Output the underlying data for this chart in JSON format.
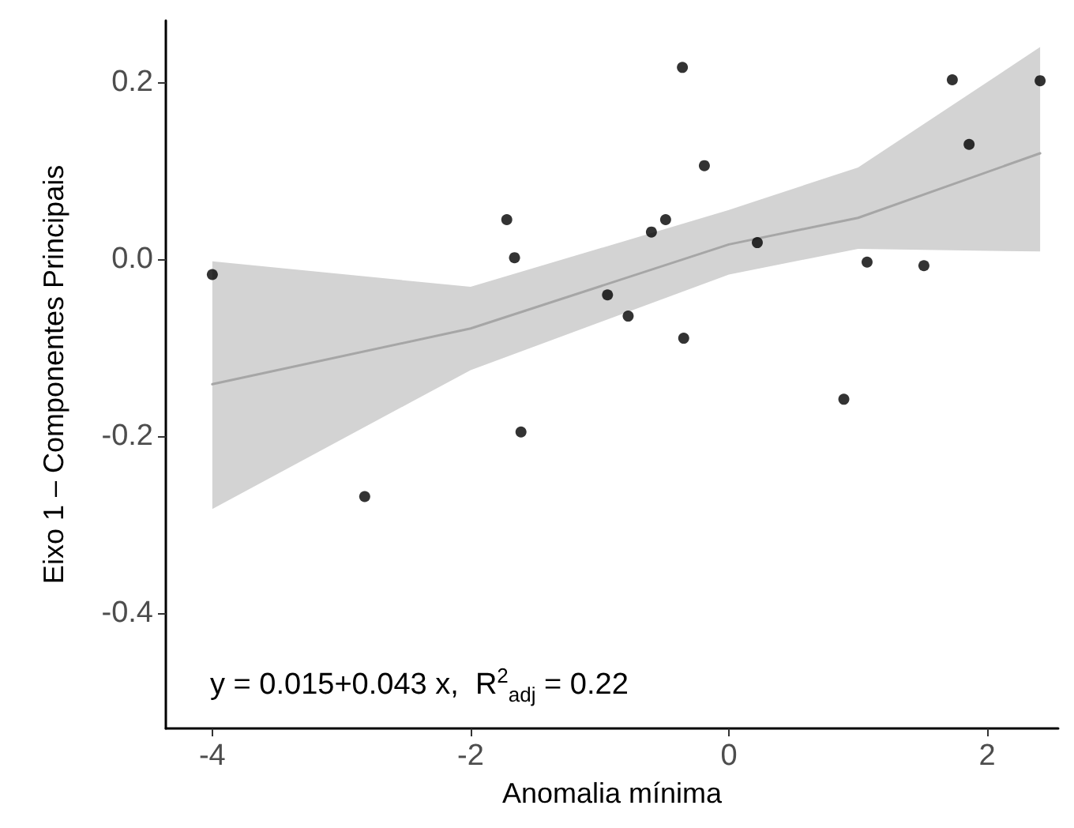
{
  "chart_data": {
    "type": "scatter",
    "xlabel": "Anomalia mínima",
    "ylabel": "Eixo 1 – Componentes Principais",
    "annotations": [
      "y = 0.015+0.043 x,  R$^{2}$$_{adj}$ = 0.22"
    ],
    "xlim": [
      -4.36,
      2.55
    ],
    "xticks": [
      -4,
      -2,
      0,
      2
    ],
    "ylim": [
      -0.53,
      0.27
    ],
    "yticks": [
      {
        "value": -0.4,
        "label": "-0.4"
      },
      {
        "value": -0.2,
        "label": "-0.2"
      },
      {
        "value": 0,
        "label": "0.0"
      },
      {
        "value": 0.2,
        "label": "0.2"
      }
    ],
    "grid": false,
    "marker": "circle",
    "series": [
      {
        "type": "line",
        "color": "#a6a6a6",
        "x": [
          -4,
          -2,
          0,
          1,
          2.41
        ],
        "values": [
          -0.141,
          -0.078,
          0.017,
          0.047,
          0.12
        ],
        "lower": [
          -0.282,
          -0.125,
          -0.017,
          0.012,
          0.009
        ],
        "upper": [
          -0.002,
          -0.031,
          0.056,
          0.104,
          0.24
        ],
        "marker": "none"
      },
      {
        "color": "#000000",
        "x": [
          -4.0,
          -2.82,
          -1.72,
          -1.66,
          -1.61,
          -0.94,
          -0.78,
          -0.6,
          -0.49,
          -0.36,
          -0.35,
          -0.19,
          0.22,
          0.89,
          1.07,
          1.51,
          1.73,
          1.86,
          2.41
        ],
        "values": [
          -0.017,
          -0.268,
          0.045,
          0.002,
          -0.195,
          -0.04,
          -0.064,
          0.031,
          0.045,
          0.217,
          -0.089,
          0.106,
          0.019,
          -0.158,
          -0.003,
          -0.007,
          0.203,
          0.13,
          0.202
        ]
      }
    ]
  }
}
